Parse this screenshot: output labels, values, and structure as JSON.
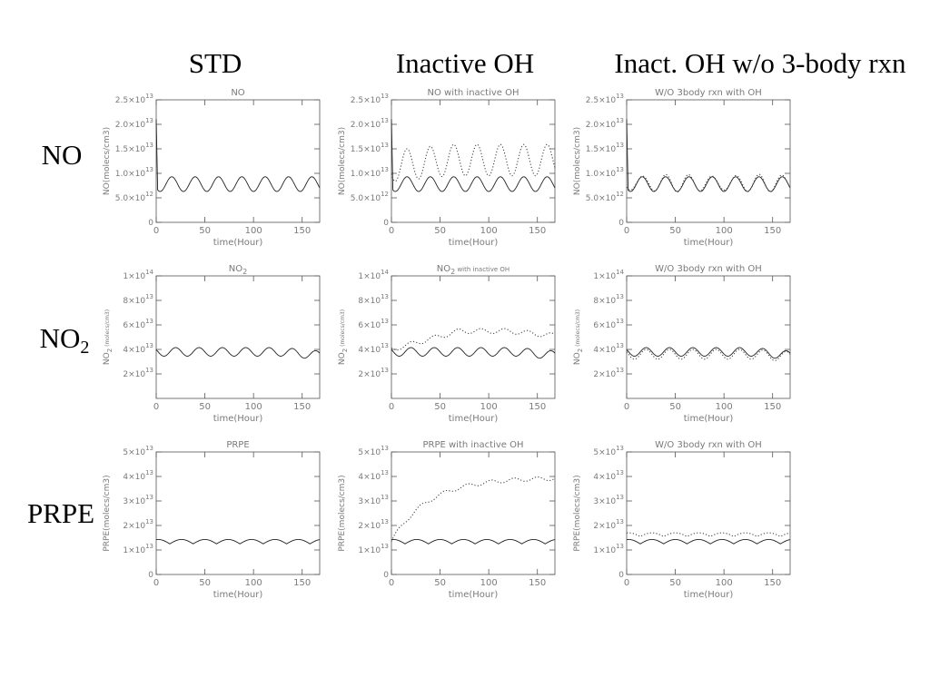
{
  "headers": [
    "STD",
    "Inactive OH",
    "Inact. OH w/o 3-body rxn"
  ],
  "row_labels": [
    {
      "text": "NO",
      "sub": ""
    },
    {
      "text": "NO",
      "sub": "2"
    },
    {
      "text": "PRPE",
      "sub": ""
    }
  ],
  "chart_data": [
    {
      "type": "line",
      "title": "NO",
      "xlabel": "time(Hour)",
      "ylabel": "NO(molecs/cm3)",
      "xlim": [
        0,
        168
      ],
      "ylim": [
        0,
        25000000000000.0
      ],
      "xticks": [
        0,
        50,
        100,
        150
      ],
      "ytick_labels": [
        {
          "v": 0,
          "m": "0",
          "e": ""
        },
        {
          "v": 5000000000000.0,
          "m": "5.0×10",
          "e": "12"
        },
        {
          "v": 10000000000000.0,
          "m": "1.0×10",
          "e": "13"
        },
        {
          "v": 15000000000000.0,
          "m": "1.5×10",
          "e": "13"
        },
        {
          "v": 20000000000000.0,
          "m": "2.0×10",
          "e": "13"
        },
        {
          "v": 25000000000000.0,
          "m": "2.5×10",
          "e": "13"
        }
      ],
      "series": [
        {
          "style": "solid",
          "kind": "no_std"
        }
      ]
    },
    {
      "type": "line",
      "title": "NO with inactive OH",
      "xlabel": "time(Hour)",
      "ylabel": "NO(molecs/cm3)",
      "xlim": [
        0,
        168
      ],
      "ylim": [
        0,
        25000000000000.0
      ],
      "xticks": [
        0,
        50,
        100,
        150
      ],
      "ytick_labels": [
        {
          "v": 0,
          "m": "0",
          "e": ""
        },
        {
          "v": 5000000000000.0,
          "m": "5.0×10",
          "e": "12"
        },
        {
          "v": 10000000000000.0,
          "m": "1.0×10",
          "e": "13"
        },
        {
          "v": 15000000000000.0,
          "m": "1.5×10",
          "e": "13"
        },
        {
          "v": 20000000000000.0,
          "m": "2.0×10",
          "e": "13"
        },
        {
          "v": 25000000000000.0,
          "m": "2.5×10",
          "e": "13"
        }
      ],
      "series": [
        {
          "style": "solid",
          "kind": "no_std"
        },
        {
          "style": "dotted",
          "kind": "no_inact"
        }
      ]
    },
    {
      "type": "line",
      "title": "W/O 3body rxn with OH",
      "xlabel": "time(Hour)",
      "ylabel": "NO(molecs/cm3)",
      "xlim": [
        0,
        168
      ],
      "ylim": [
        0,
        25000000000000.0
      ],
      "xticks": [
        0,
        50,
        100,
        150
      ],
      "ytick_labels": [
        {
          "v": 0,
          "m": "0",
          "e": ""
        },
        {
          "v": 5000000000000.0,
          "m": "5.0×10",
          "e": "12"
        },
        {
          "v": 10000000000000.0,
          "m": "1.0×10",
          "e": "13"
        },
        {
          "v": 15000000000000.0,
          "m": "1.5×10",
          "e": "13"
        },
        {
          "v": 20000000000000.0,
          "m": "2.0×10",
          "e": "13"
        },
        {
          "v": 25000000000000.0,
          "m": "2.5×10",
          "e": "13"
        }
      ],
      "series": [
        {
          "style": "solid",
          "kind": "no_std"
        },
        {
          "style": "dotted",
          "kind": "no_w3"
        }
      ]
    },
    {
      "type": "line",
      "title": "NO",
      "title_sub": "2",
      "xlabel": "time(Hour)",
      "ylabel": "NO",
      "ylabel_sub": "2",
      "ylabel_rest": " (molecs/cm3)",
      "xlim": [
        0,
        168
      ],
      "ylim": [
        0,
        100000000000000.0
      ],
      "xticks": [
        0,
        50,
        100,
        150
      ],
      "ytick_labels": [
        {
          "v": 20000000000000.0,
          "m": "2×10",
          "e": "13"
        },
        {
          "v": 40000000000000.0,
          "m": "4×10",
          "e": "13"
        },
        {
          "v": 60000000000000.0,
          "m": "6×10",
          "e": "13"
        },
        {
          "v": 80000000000000.0,
          "m": "8×10",
          "e": "13"
        },
        {
          "v": 100000000000000.0,
          "m": "1×10",
          "e": "14"
        }
      ],
      "series": [
        {
          "style": "solid",
          "kind": "no2_std"
        }
      ]
    },
    {
      "type": "line",
      "title": "NO",
      "title_sub": "2",
      "title_rest": " with inactive OH",
      "xlabel": "time(Hour)",
      "ylabel": "NO",
      "ylabel_sub": "2",
      "ylabel_rest": " (molecs/cm3)",
      "xlim": [
        0,
        168
      ],
      "ylim": [
        0,
        100000000000000.0
      ],
      "xticks": [
        0,
        50,
        100,
        150
      ],
      "ytick_labels": [
        {
          "v": 20000000000000.0,
          "m": "2×10",
          "e": "13"
        },
        {
          "v": 40000000000000.0,
          "m": "4×10",
          "e": "13"
        },
        {
          "v": 60000000000000.0,
          "m": "6×10",
          "e": "13"
        },
        {
          "v": 80000000000000.0,
          "m": "8×10",
          "e": "13"
        },
        {
          "v": 100000000000000.0,
          "m": "1×10",
          "e": "14"
        }
      ],
      "series": [
        {
          "style": "solid",
          "kind": "no2_std"
        },
        {
          "style": "dotted",
          "kind": "no2_inact"
        }
      ]
    },
    {
      "type": "line",
      "title": "W/O 3body rxn with OH",
      "xlabel": "time(Hour)",
      "ylabel": "NO",
      "ylabel_sub": "2",
      "ylabel_rest": " (molecs/cm3)",
      "xlim": [
        0,
        168
      ],
      "ylim": [
        0,
        100000000000000.0
      ],
      "xticks": [
        0,
        50,
        100,
        150
      ],
      "ytick_labels": [
        {
          "v": 20000000000000.0,
          "m": "2×10",
          "e": "13"
        },
        {
          "v": 40000000000000.0,
          "m": "4×10",
          "e": "13"
        },
        {
          "v": 60000000000000.0,
          "m": "6×10",
          "e": "13"
        },
        {
          "v": 80000000000000.0,
          "m": "8×10",
          "e": "13"
        },
        {
          "v": 100000000000000.0,
          "m": "1×10",
          "e": "14"
        }
      ],
      "series": [
        {
          "style": "solid",
          "kind": "no2_std"
        },
        {
          "style": "dotted",
          "kind": "no2_w3"
        }
      ]
    },
    {
      "type": "line",
      "title": "PRPE",
      "xlabel": "time(Hour)",
      "ylabel": "PRPE(molecs/cm3)",
      "xlim": [
        0,
        168
      ],
      "ylim": [
        0,
        50000000000000.0
      ],
      "xticks": [
        0,
        50,
        100,
        150
      ],
      "ytick_labels": [
        {
          "v": 0,
          "m": "0",
          "e": ""
        },
        {
          "v": 10000000000000.0,
          "m": "1×10",
          "e": "13"
        },
        {
          "v": 20000000000000.0,
          "m": "2×10",
          "e": "13"
        },
        {
          "v": 30000000000000.0,
          "m": "3×10",
          "e": "13"
        },
        {
          "v": 40000000000000.0,
          "m": "4×10",
          "e": "13"
        },
        {
          "v": 50000000000000.0,
          "m": "5×10",
          "e": "13"
        }
      ],
      "series": [
        {
          "style": "solid",
          "kind": "prpe_std"
        }
      ]
    },
    {
      "type": "line",
      "title": "PRPE with inactive OH",
      "xlabel": "time(Hour)",
      "ylabel": "PRPE(molecs/cm3)",
      "xlim": [
        0,
        168
      ],
      "ylim": [
        0,
        50000000000000.0
      ],
      "xticks": [
        0,
        50,
        100,
        150
      ],
      "ytick_labels": [
        {
          "v": 0,
          "m": "0",
          "e": ""
        },
        {
          "v": 10000000000000.0,
          "m": "1×10",
          "e": "13"
        },
        {
          "v": 20000000000000.0,
          "m": "2×10",
          "e": "13"
        },
        {
          "v": 30000000000000.0,
          "m": "3×10",
          "e": "13"
        },
        {
          "v": 40000000000000.0,
          "m": "4×10",
          "e": "13"
        },
        {
          "v": 50000000000000.0,
          "m": "5×10",
          "e": "13"
        }
      ],
      "series": [
        {
          "style": "solid",
          "kind": "prpe_std"
        },
        {
          "style": "dotted",
          "kind": "prpe_inact"
        }
      ]
    },
    {
      "type": "line",
      "title": "W/O 3body rxn with OH",
      "xlabel": "time(Hour)",
      "ylabel": "PRPE(molecs/cm3)",
      "xlim": [
        0,
        168
      ],
      "ylim": [
        0,
        50000000000000.0
      ],
      "xticks": [
        0,
        50,
        100,
        150
      ],
      "ytick_labels": [
        {
          "v": 0,
          "m": "0",
          "e": ""
        },
        {
          "v": 10000000000000.0,
          "m": "1×10",
          "e": "13"
        },
        {
          "v": 20000000000000.0,
          "m": "2×10",
          "e": "13"
        },
        {
          "v": 30000000000000.0,
          "m": "3×10",
          "e": "13"
        },
        {
          "v": 40000000000000.0,
          "m": "4×10",
          "e": "13"
        },
        {
          "v": 50000000000000.0,
          "m": "5×10",
          "e": "13"
        }
      ],
      "series": [
        {
          "style": "solid",
          "kind": "prpe_std"
        },
        {
          "style": "dotted",
          "kind": "prpe_w3"
        }
      ]
    }
  ]
}
